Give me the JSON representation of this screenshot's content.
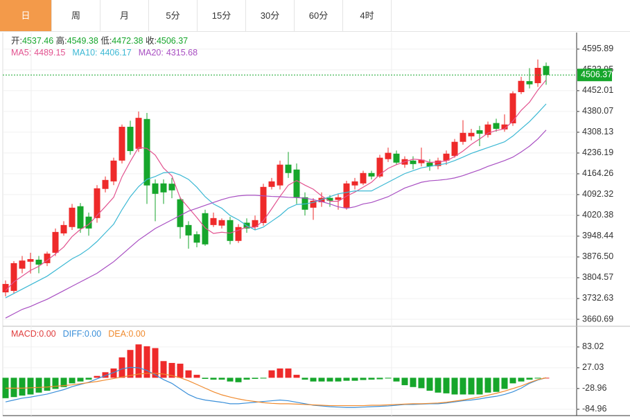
{
  "tabs": [
    "日",
    "周",
    "月",
    "5分",
    "15分",
    "30分",
    "60分",
    "4时"
  ],
  "active_tab": 0,
  "chart_data": [
    {
      "type": "candlestick",
      "ohlc_labels": [
        "开:",
        "高:",
        "低:",
        "收:"
      ],
      "up_color": "#ee2a2a",
      "down_color": "#16a62b",
      "open": [
        3754,
        3759,
        3836,
        3860,
        3867,
        3855,
        3891,
        3958,
        3980,
        4052,
        4016,
        4011,
        4112,
        4138,
        4210,
        4327,
        4251,
        4354,
        4131,
        4131,
        4130,
        4076,
        3987,
        3955,
        4028,
        3987,
        3985,
        4004,
        3932,
        3995,
        3980,
        3994,
        4119,
        4124,
        4196,
        4179,
        4083,
        4047,
        4066,
        4081,
        4074,
        4047,
        4124,
        4131,
        4167,
        4155,
        4215,
        4234,
        4196,
        4210,
        4201,
        4203,
        4191,
        4210,
        4226,
        4275,
        4294,
        4315,
        4299,
        4340,
        4318,
        4339,
        4447,
        4485,
        4478,
        4537.46
      ],
      "high": [
        3795,
        3862,
        3880,
        3891,
        3880,
        3895,
        3975,
        4000,
        4060,
        4063,
        4030,
        4125,
        4155,
        4220,
        4335,
        4348,
        4380,
        4375,
        4145,
        4145,
        4150,
        4085,
        4000,
        3965,
        4040,
        4030,
        4010,
        4015,
        3990,
        4010,
        4020,
        4130,
        4150,
        4210,
        4240,
        4200,
        4100,
        4080,
        4100,
        4090,
        4095,
        4140,
        4150,
        4175,
        4175,
        4230,
        4255,
        4245,
        4225,
        4225,
        4255,
        4215,
        4220,
        4245,
        4285,
        4350,
        4320,
        4330,
        4345,
        4355,
        4370,
        4450,
        4500,
        4530,
        4560,
        4549.38
      ],
      "low": [
        3740,
        3750,
        3820,
        3819,
        3820,
        3845,
        3880,
        3950,
        3970,
        3960,
        3950,
        3995,
        4100,
        4125,
        4200,
        4230,
        4240,
        4060,
        4000,
        4060,
        4080,
        3940,
        3905,
        3910,
        3915,
        3980,
        3975,
        3920,
        3925,
        3960,
        3970,
        3985,
        4110,
        4110,
        4150,
        4060,
        4020,
        4005,
        4050,
        4050,
        4040,
        4040,
        4110,
        4125,
        4145,
        4150,
        4205,
        4195,
        4185,
        4180,
        4190,
        4175,
        4180,
        4195,
        4220,
        4265,
        4280,
        4260,
        4290,
        4310,
        4310,
        4330,
        4440,
        4460,
        4465,
        4472.38
      ],
      "close": [
        3783,
        3855,
        3864,
        3869,
        3850,
        3888,
        3963,
        3987,
        4047,
        3975,
        3975,
        4114,
        4143,
        4210,
        4327,
        4243,
        4358,
        4124,
        4095,
        4100,
        4107,
        3980,
        3951,
        3926,
        3920,
        4011,
        4004,
        3932,
        3980,
        3975,
        4004,
        4119,
        4138,
        4196,
        4167,
        4083,
        4040,
        4071,
        4081,
        4071,
        4083,
        4131,
        4138,
        4167,
        4155,
        4220,
        4237,
        4203,
        4215,
        4198,
        4213,
        4190,
        4210,
        4234,
        4275,
        4306,
        4306,
        4303,
        4335,
        4320,
        4335,
        4443,
        4486,
        4474,
        4531,
        4506.37
      ],
      "series": [
        {
          "name": "MA5:",
          "color": "#e2528f",
          "values": [
            3760,
            3790,
            3810,
            3830,
            3844,
            3865,
            3887,
            3911,
            3947,
            3972,
            3989,
            4020,
            4051,
            4083,
            4154,
            4207,
            4256,
            4252,
            4229,
            4184,
            4157,
            4081,
            4047,
            4013,
            3977,
            3958,
            3962,
            3959,
            3969,
            3980,
            3979,
            4002,
            4043,
            4086,
            4125,
            4141,
            4125,
            4111,
            4088,
            4069,
            4069,
            4087,
            4101,
            4118,
            4135,
            4162,
            4183,
            4196,
            4206,
            4215,
            4213,
            4204,
            4205,
            4209,
            4224,
            4243,
            4266,
            4285,
            4305,
            4314,
            4320,
            4347,
            4384,
            4412,
            4454,
            4489.15
          ]
        },
        {
          "name": "MA10:",
          "color": "#3bb8d4",
          "values": [
            3735,
            3750,
            3765,
            3780,
            3795,
            3810,
            3830,
            3850,
            3870,
            3885,
            3905,
            3930,
            3960,
            3990,
            4040,
            4085,
            4120,
            4145,
            4155,
            4168,
            4170,
            4160,
            4145,
            4118,
            4085,
            4060,
            4045,
            4020,
            4005,
            3985,
            3970,
            3980,
            4000,
            4020,
            4045,
            4058,
            4060,
            4065,
            4075,
            4085,
            4095,
            4100,
            4105,
            4105,
            4105,
            4120,
            4135,
            4150,
            4165,
            4175,
            4185,
            4190,
            4195,
            4200,
            4210,
            4222,
            4235,
            4245,
            4255,
            4265,
            4275,
            4295,
            4320,
            4345,
            4375,
            4406.17
          ]
        },
        {
          "name": "MA20:",
          "color": "#a84ec2",
          "values": [
            3665,
            3680,
            3695,
            3705,
            3718,
            3730,
            3745,
            3760,
            3775,
            3790,
            3805,
            3820,
            3840,
            3860,
            3885,
            3910,
            3935,
            3955,
            3975,
            3990,
            4005,
            4020,
            4035,
            4045,
            4055,
            4065,
            4075,
            4083,
            4088,
            4090,
            4090,
            4088,
            4086,
            4085,
            4083,
            4082,
            4080,
            4075,
            4068,
            4060,
            4050,
            4045,
            4050,
            4060,
            4065,
            4075,
            4085,
            4100,
            4115,
            4125,
            4135,
            4140,
            4142,
            4145,
            4150,
            4158,
            4168,
            4178,
            4190,
            4200,
            4210,
            4222,
            4240,
            4260,
            4285,
            4315.68
          ]
        }
      ],
      "ylim": [
        3639,
        4646
      ],
      "yticks": [
        4595.89,
        4523.95,
        4452.01,
        4380.07,
        4308.13,
        4236.19,
        4164.26,
        4092.32,
        4020.38,
        3948.44,
        {
          "value": 3876.5,
          "label": "3876.50"
        },
        3804.57,
        3732.63,
        3660.69
      ],
      "grid": true
    },
    {
      "type": "macd",
      "up_color": "#ee2a2a",
      "down_color": "#16a62b",
      "series": [
        {
          "name": "MACD:",
          "type": "bar",
          "color": "#e03c3c",
          "last_label": "0.00",
          "values": [
            -55,
            -52,
            -48,
            -45,
            -40,
            -35,
            -30,
            -25,
            -15,
            -10,
            -5,
            5,
            15,
            25,
            55,
            75,
            90,
            85,
            80,
            45,
            40,
            38,
            20,
            8,
            -3,
            -5,
            -5,
            -10,
            -12,
            -5,
            -3,
            -2,
            20,
            25,
            25,
            8,
            -5,
            -10,
            -10,
            -10,
            -10,
            -8,
            -8,
            -6,
            -5,
            -4,
            -2,
            -10,
            -20,
            -25,
            -28,
            -35,
            -40,
            -42,
            -45,
            -45,
            -45,
            -45,
            -40,
            -38,
            -30,
            -15,
            -10,
            -5,
            -2,
            0
          ]
        },
        {
          "name": "DIFF:",
          "type": "line",
          "color": "#3a8fd9",
          "last_label": "0.00",
          "values": [
            -65,
            -60,
            -55,
            -52,
            -48,
            -44,
            -38,
            -32,
            -24,
            -18,
            -12,
            -3,
            6,
            14,
            24,
            28,
            27,
            20,
            8,
            -5,
            -15,
            -30,
            -45,
            -55,
            -60,
            -63,
            -66,
            -70,
            -70,
            -68,
            -66,
            -64,
            -62,
            -60,
            -62,
            -66,
            -70,
            -74,
            -76,
            -78,
            -79,
            -80,
            -80,
            -79,
            -78,
            -77,
            -76,
            -74,
            -72,
            -72,
            -71,
            -70,
            -70,
            -68,
            -65,
            -62,
            -60,
            -57,
            -53,
            -50,
            -45,
            -38,
            -28,
            -15,
            -6,
            0
          ]
        },
        {
          "name": "DEA:",
          "type": "line",
          "color": "#f08a2d",
          "last_label": "0.00",
          "values": [
            -28,
            -28,
            -28,
            -27,
            -26,
            -25,
            -23,
            -21,
            -19,
            -16,
            -13,
            -10,
            -6,
            -2,
            2,
            6,
            10,
            12,
            12,
            10,
            6,
            0,
            -8,
            -18,
            -28,
            -38,
            -46,
            -52,
            -57,
            -61,
            -64,
            -67,
            -69,
            -70,
            -70,
            -71,
            -72,
            -73,
            -74,
            -75,
            -75,
            -75,
            -75,
            -75,
            -74,
            -74,
            -73,
            -72,
            -71,
            -70,
            -70,
            -69,
            -68,
            -66,
            -63,
            -60,
            -56,
            -52,
            -47,
            -42,
            -36,
            -29,
            -22,
            -13,
            -5,
            0
          ]
        }
      ],
      "ylim": [
        -102,
        137
      ],
      "yticks": [
        83.02,
        27.03,
        -28.96,
        -84.96
      ]
    }
  ]
}
